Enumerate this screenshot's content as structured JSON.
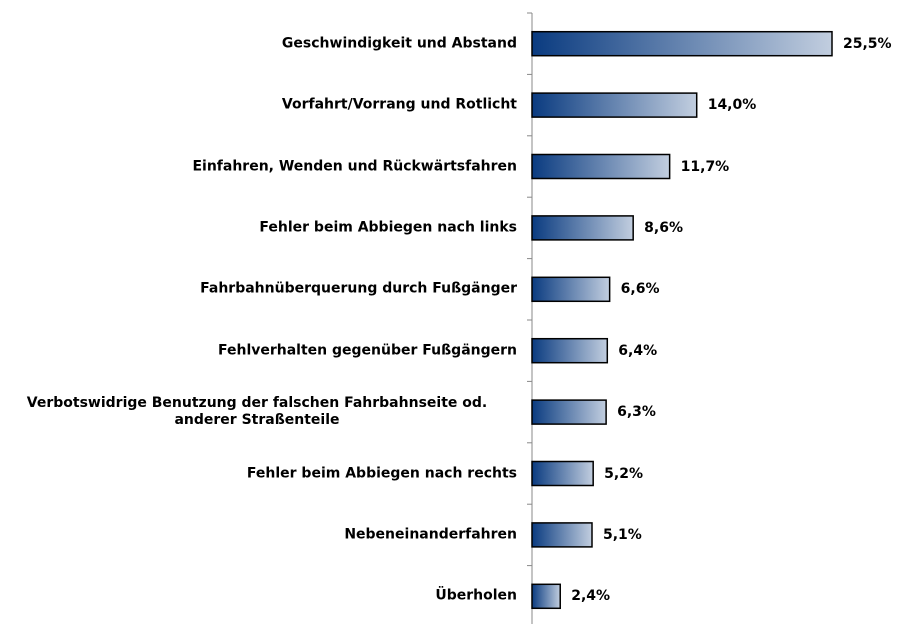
{
  "chart_data": {
    "type": "bar",
    "orientation": "horizontal",
    "categories": [
      "Geschwindigkeit und Abstand",
      "Vorfahrt/Vorrang und Rotlicht",
      "Einfahren, Wenden und Rückwärtsfahren",
      "Fehler beim Abbiegen nach links",
      "Fahrbahnüberquerung durch Fußgänger",
      "Fehlverhalten gegenüber Fußgängern",
      "Verbotswidrige Benutzung der falschen Fahrbahnseite od.\nanderer Straßenteile",
      "Fehler beim Abbiegen nach rechts",
      "Nebeneinanderfahren",
      "Überholen"
    ],
    "values": [
      25.5,
      14.0,
      11.7,
      8.6,
      6.6,
      6.4,
      6.3,
      5.2,
      5.1,
      2.4
    ],
    "value_labels": [
      "25,5%",
      "14,0%",
      "11,7%",
      "8,6%",
      "6,6%",
      "6,4%",
      "6,3%",
      "5,2%",
      "5,1%",
      "2,4%"
    ],
    "color": "#0a3b80"
  }
}
